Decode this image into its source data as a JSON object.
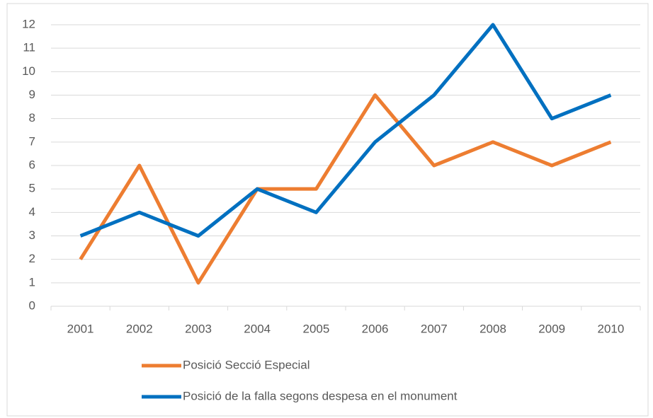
{
  "chart_data": {
    "type": "line",
    "categories": [
      "2001",
      "2002",
      "2003",
      "2004",
      "2005",
      "2006",
      "2007",
      "2008",
      "2009",
      "2010"
    ],
    "series": [
      {
        "name": "Posició Secció Especial",
        "color": "#ed7d31",
        "values": [
          2,
          6,
          1,
          5,
          5,
          9,
          6,
          7,
          6,
          7
        ]
      },
      {
        "name": "Posició de la falla segons despesa en el monument",
        "color": "#0070c0",
        "values": [
          3,
          4,
          3,
          5,
          4,
          7,
          9,
          12,
          8,
          9
        ]
      }
    ],
    "ylim": [
      0,
      12
    ],
    "yticks": [
      0,
      1,
      2,
      3,
      4,
      5,
      6,
      7,
      8,
      9,
      10,
      11,
      12
    ],
    "grid": true,
    "legend": "bottom"
  }
}
